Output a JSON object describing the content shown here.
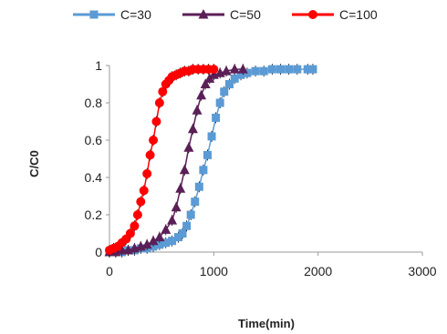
{
  "chart_data": {
    "type": "scatter",
    "title": "",
    "xlabel": "Time(min)",
    "ylabel": "C/C0",
    "xlim": [
      0,
      3000
    ],
    "ylim": [
      0,
      1
    ],
    "x_ticks": [
      "0",
      "1000",
      "2000",
      "3000"
    ],
    "y_ticks": [
      "0",
      "0.2",
      "0.4",
      "0.6",
      "0.8",
      "1"
    ],
    "legend_position": "top",
    "series": [
      {
        "name": "C=30",
        "marker": "square",
        "color": "#5b9bd5",
        "x": [
          0,
          60,
          120,
          180,
          240,
          300,
          360,
          420,
          480,
          540,
          600,
          660,
          700,
          740,
          780,
          820,
          860,
          900,
          940,
          980,
          1020,
          1060,
          1100,
          1150,
          1200,
          1260,
          1320,
          1400,
          1480,
          1560,
          1640,
          1720,
          1800,
          1900,
          1950
        ],
        "y": [
          0.0,
          0.0,
          0.0,
          0.01,
          0.01,
          0.02,
          0.02,
          0.03,
          0.04,
          0.05,
          0.06,
          0.08,
          0.1,
          0.14,
          0.2,
          0.27,
          0.35,
          0.44,
          0.52,
          0.62,
          0.72,
          0.8,
          0.86,
          0.9,
          0.93,
          0.95,
          0.96,
          0.97,
          0.97,
          0.98,
          0.98,
          0.98,
          0.98,
          0.98,
          0.98
        ]
      },
      {
        "name": "C=50",
        "marker": "triangle",
        "color": "#5b1f57",
        "x": [
          0,
          60,
          120,
          180,
          240,
          300,
          360,
          420,
          480,
          540,
          600,
          640,
          680,
          720,
          760,
          800,
          840,
          880,
          920,
          960,
          1000,
          1060,
          1120,
          1200,
          1280
        ],
        "y": [
          0.0,
          0.0,
          0.01,
          0.01,
          0.02,
          0.03,
          0.04,
          0.06,
          0.08,
          0.12,
          0.17,
          0.24,
          0.34,
          0.44,
          0.56,
          0.66,
          0.76,
          0.84,
          0.9,
          0.93,
          0.95,
          0.96,
          0.97,
          0.98,
          0.98
        ]
      },
      {
        "name": "C=100",
        "marker": "circle",
        "color": "#ff0000",
        "x": [
          0,
          40,
          80,
          120,
          160,
          200,
          240,
          270,
          300,
          330,
          360,
          390,
          420,
          450,
          480,
          510,
          540,
          570,
          600,
          640,
          680,
          720,
          760,
          800,
          850,
          900,
          950,
          1000
        ],
        "y": [
          0.01,
          0.02,
          0.03,
          0.05,
          0.07,
          0.1,
          0.14,
          0.2,
          0.27,
          0.33,
          0.42,
          0.52,
          0.6,
          0.7,
          0.8,
          0.86,
          0.9,
          0.92,
          0.94,
          0.95,
          0.96,
          0.97,
          0.97,
          0.98,
          0.98,
          0.98,
          0.98,
          0.98
        ]
      }
    ]
  }
}
